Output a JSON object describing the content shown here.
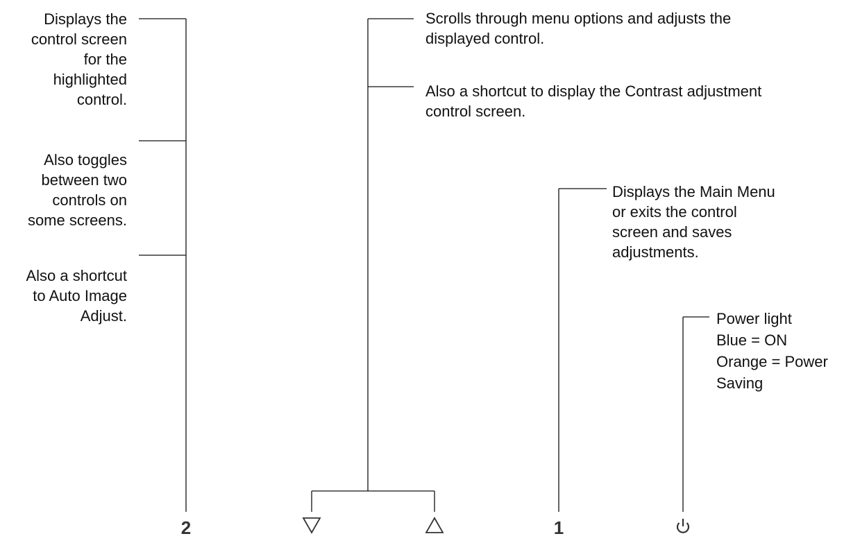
{
  "button2": {
    "label": "2",
    "desc_display": "Displays the\ncontrol screen\nfor the\nhighlighted\ncontrol.",
    "desc_toggle": "Also toggles\nbetween two\ncontrols on\nsome screens.",
    "desc_auto": "Also a shortcut\nto Auto Image\nAdjust."
  },
  "arrows": {
    "down_icon": "triangle-down",
    "up_icon": "triangle-up",
    "desc_scroll": "Scrolls through menu options and adjusts the\ndisplayed control.",
    "desc_contrast": "Also a shortcut to display the Contrast adjustment\ncontrol screen."
  },
  "button1": {
    "label": "1",
    "desc": "Displays the Main Menu\nor exits the control\nscreen and saves\nadjustments."
  },
  "power": {
    "icon": "power-icon",
    "desc": "Power light\nBlue = ON\nOrange = Power\nSaving"
  },
  "colors": {
    "line": "#111111",
    "text": "#111111"
  }
}
